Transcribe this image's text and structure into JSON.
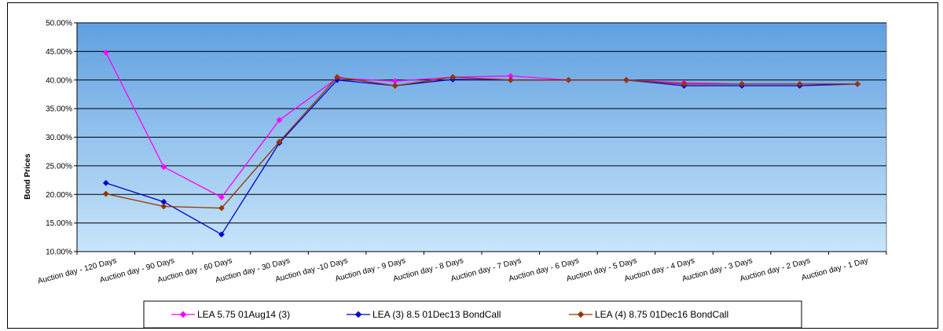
{
  "chart_data": {
    "type": "line",
    "title": "",
    "xlabel": "",
    "ylabel": "Bond Prices",
    "ylim": [
      0.1,
      0.5
    ],
    "ytick_step": 0.05,
    "y_format": "percent_2dp",
    "grid": "horizontal",
    "plot_gradient": [
      "#5f9fe0",
      "#c8e6fb"
    ],
    "legend_position": "bottom",
    "categories": [
      "Auction day - 120 Days",
      "Auction day - 90 Days",
      "Auction day - 60 Days",
      "Auction day - 30 Days",
      "Auction day -10 Days",
      "Auction day - 9 Days",
      "Auction day - 8 Days",
      "Auction day - 7 Days",
      "Auction day - 6 Days",
      "Auction day - 5 Days",
      "Auction day - 4 Days",
      "Auction day - 3 Days",
      "Auction day - 2 Days",
      "Auction day - 1 Day"
    ],
    "series": [
      {
        "name": "LEA 5.75 01Aug14 (3)",
        "color": "#ff00ff",
        "marker": "diamond",
        "values": [
          0.448,
          0.248,
          0.195,
          0.33,
          0.403,
          0.398,
          0.405,
          0.407,
          0.4,
          0.4,
          0.395,
          0.393,
          0.393,
          0.393
        ]
      },
      {
        "name": "LEA (3) 8.5 01Dec13 BondCall",
        "color": "#0000cc",
        "marker": "diamond",
        "values": [
          0.22,
          0.187,
          0.13,
          0.29,
          0.4,
          0.39,
          0.401,
          0.4,
          0.4,
          0.4,
          0.39,
          0.39,
          0.39,
          0.393
        ]
      },
      {
        "name": "LEA (4) 8.75 01Dec16 BondCall",
        "color": "#993300",
        "marker": "diamond",
        "values": [
          0.201,
          0.179,
          0.176,
          0.292,
          0.405,
          0.39,
          0.405,
          0.4,
          0.4,
          0.4,
          0.393,
          0.393,
          0.393,
          0.393
        ]
      }
    ]
  }
}
